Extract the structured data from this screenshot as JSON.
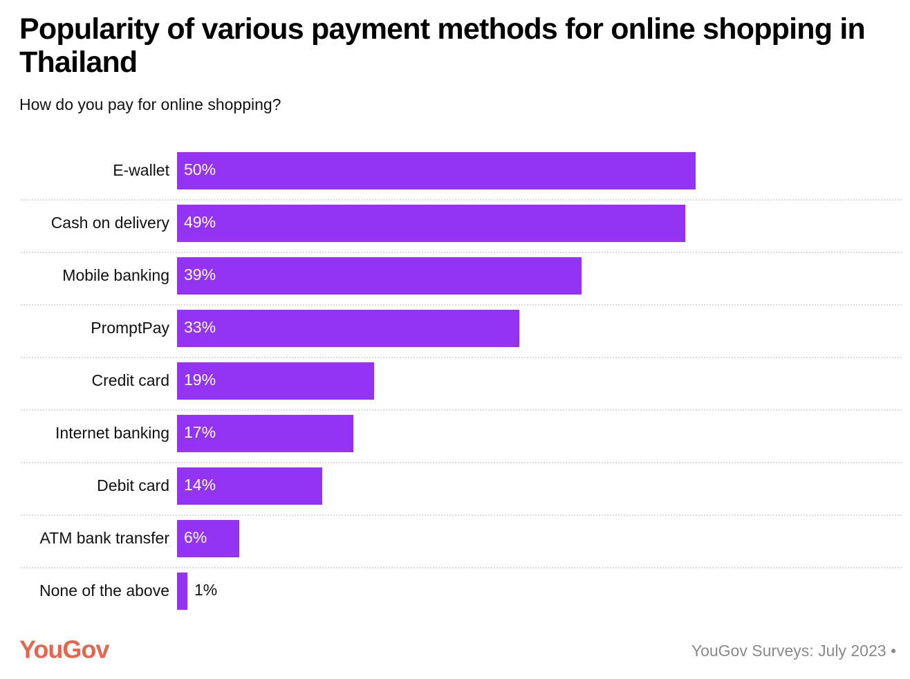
{
  "chart_data": {
    "type": "bar",
    "orientation": "horizontal",
    "title": "Popularity of various payment methods for online shopping in Thailand",
    "subtitle": "How do you pay for online shopping?",
    "categories": [
      "E-wallet",
      "Cash on delivery",
      "Mobile banking",
      "PromptPay",
      "Credit card",
      "Internet banking",
      "Debit card",
      "ATM bank transfer",
      "None of the above"
    ],
    "values": [
      50,
      49,
      39,
      33,
      19,
      17,
      14,
      6,
      1
    ],
    "value_labels": [
      "50%",
      "49%",
      "39%",
      "33%",
      "19%",
      "17%",
      "14%",
      "6%",
      "1%"
    ],
    "color": "#9334f5",
    "logo": "YouGov",
    "source": "YouGov Surveys: July 2023 •"
  }
}
